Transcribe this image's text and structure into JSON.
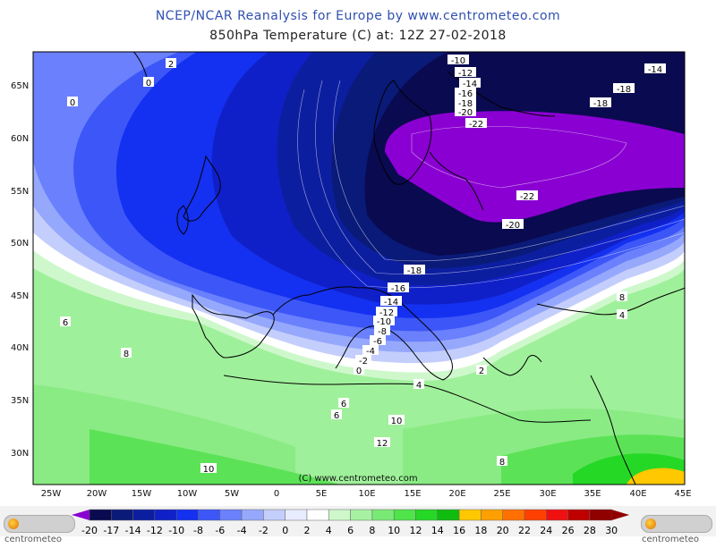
{
  "header": {
    "title": "NCEP/NCAR Reanalysis for Europe by www.centrometeo.com",
    "subtitle": "850hPa Temperature (C) at: 12Z 27-02-2018"
  },
  "copyright": "(C) www.centrometeo.com",
  "lat_labels": [
    "65N",
    "60N",
    "55N",
    "50N",
    "45N",
    "40N",
    "35N",
    "30N"
  ],
  "lon_labels": [
    "25W",
    "20W",
    "15W",
    "10W",
    "5W",
    "0",
    "5E",
    "10E",
    "15E",
    "20E",
    "25E",
    "30E",
    "35E",
    "40E",
    "45E"
  ],
  "contour_labels": [
    "2",
    "0",
    "0",
    "-10",
    "-12",
    "-14",
    "-16",
    "-18",
    "-20",
    "-22",
    "-14",
    "-18",
    "-18",
    "-22",
    "-20",
    "-18",
    "-16",
    "-14",
    "-12",
    "-10",
    "-8",
    "-6",
    "-4",
    "-2",
    "0",
    "6",
    "8",
    "6",
    "6",
    "10",
    "12",
    "4",
    "4",
    "2",
    "8",
    "10",
    "8"
  ],
  "legend": {
    "values": [
      "-20",
      "-17",
      "-14",
      "-12",
      "-10",
      "-8",
      "-6",
      "-4",
      "-2",
      "0",
      "2",
      "4",
      "6",
      "8",
      "10",
      "12",
      "14",
      "16",
      "18",
      "20",
      "22",
      "24",
      "26",
      "28",
      "30"
    ],
    "colors": [
      "#8a00d2",
      "#0a0a50",
      "#0a1a78",
      "#0c1ea0",
      "#1020c8",
      "#1430f0",
      "#3c56f8",
      "#6a80fc",
      "#96a8fc",
      "#c4cefc",
      "#e8ecff",
      "#ffffff",
      "#cef8cc",
      "#a6f2a2",
      "#7aea76",
      "#4ee44a",
      "#26d826",
      "#10bc10",
      "#ffc800",
      "#ffa000",
      "#ff7000",
      "#ff4000",
      "#f01010",
      "#c00000",
      "#900000"
    ],
    "logo_left": "centrometeo",
    "logo_right": "centrometeo"
  }
}
